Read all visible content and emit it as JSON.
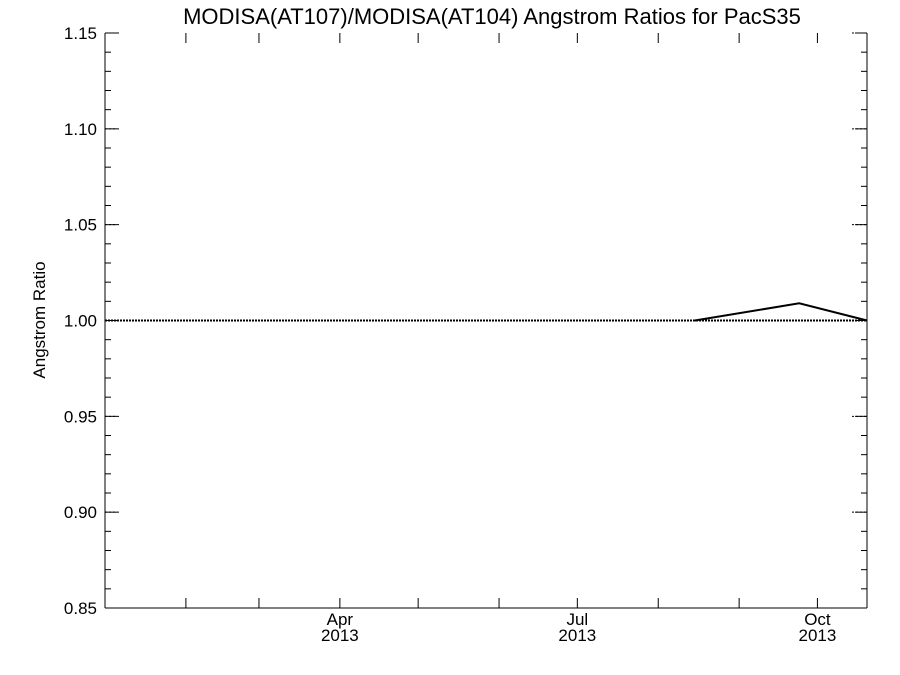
{
  "chart_data": {
    "type": "line",
    "title": "MODISA(AT107)/MODISA(AT104)  Angstrom Ratios for PacS35",
    "xlabel": "",
    "ylabel": "Angstrom Ratio",
    "xlim": [
      "2013-01-01",
      "2013-10-20"
    ],
    "ylim": [
      0.85,
      1.15
    ],
    "y_ticks": [
      "0.85",
      "0.90",
      "0.95",
      "1.00",
      "1.05",
      "1.10",
      "1.15"
    ],
    "x_ticks": [
      {
        "date": "2013-04-01",
        "month": "Apr",
        "year": "2013"
      },
      {
        "date": "2013-07-01",
        "month": "Jul",
        "year": "2013"
      },
      {
        "date": "2013-10-01",
        "month": "Oct",
        "year": "2013"
      }
    ],
    "grid": "dotted horizontal reference line at 1.00",
    "reference_lines": [
      1.0
    ],
    "series": [
      {
        "x": [
          "2013-08-15",
          "2013-09-24",
          "2013-10-20"
        ],
        "y": [
          1.0,
          1.009,
          1.0
        ],
        "color": "#000000"
      }
    ]
  }
}
